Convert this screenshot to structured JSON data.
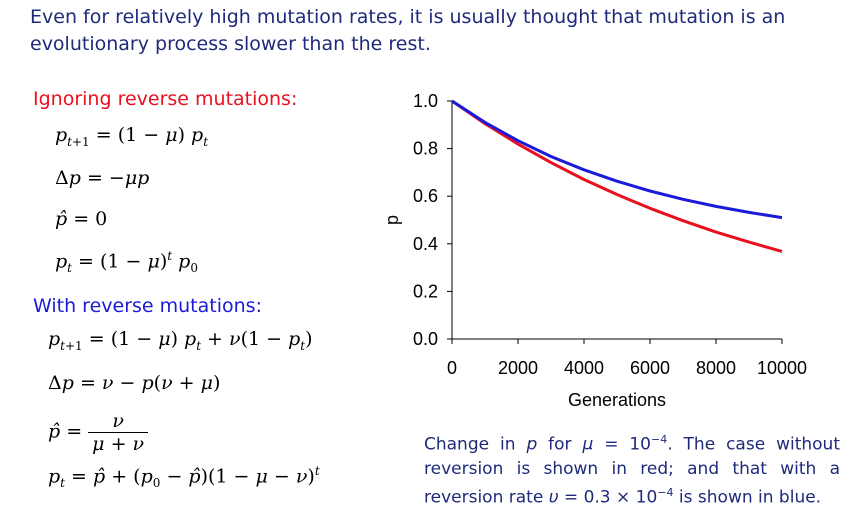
{
  "intro": {
    "line1": "Even for relatively high mutation rates, it is usually thought that mutation is an",
    "line2": "evolutionary process slower than the rest."
  },
  "left": {
    "no_reverse_heading": "Ignoring reverse mutations:",
    "with_reverse_heading": "With reverse mutations:"
  },
  "caption": {
    "part1": "Change in ",
    "var_p": "p",
    "part2": " for ",
    "var_mu": "μ",
    "part3": " = 10",
    "exp1": "−4",
    "part4": ". The case without reversion is shown in red; and that with a reversion rate ",
    "var_u": "υ",
    "part5": " = 0.3 × 10",
    "exp2": "−4",
    "part6": " is shown in blue."
  },
  "chart_data": {
    "type": "line",
    "xlabel": "Generations",
    "ylabel": "p",
    "xlim": [
      0,
      10000
    ],
    "ylim": [
      0,
      1
    ],
    "xticks": [
      "0",
      "2000",
      "4000",
      "6000",
      "8000",
      "10000"
    ],
    "yticks": [
      "0.0",
      "0.2",
      "0.4",
      "0.6",
      "0.8",
      "1.0"
    ],
    "grid": false,
    "series": [
      {
        "color": "#e8101e",
        "x": [
          0,
          1000,
          2000,
          3000,
          4000,
          5000,
          6000,
          7000,
          8000,
          9000,
          10000
        ],
        "y": [
          1.0,
          0.905,
          0.819,
          0.741,
          0.67,
          0.607,
          0.549,
          0.497,
          0.449,
          0.407,
          0.368
        ]
      },
      {
        "color": "#1a1ad8",
        "x": [
          0,
          1000,
          2000,
          3000,
          4000,
          5000,
          6000,
          7000,
          8000,
          9000,
          10000
        ],
        "y": [
          1.0,
          0.91,
          0.833,
          0.767,
          0.711,
          0.663,
          0.622,
          0.587,
          0.557,
          0.532,
          0.51
        ]
      }
    ]
  }
}
